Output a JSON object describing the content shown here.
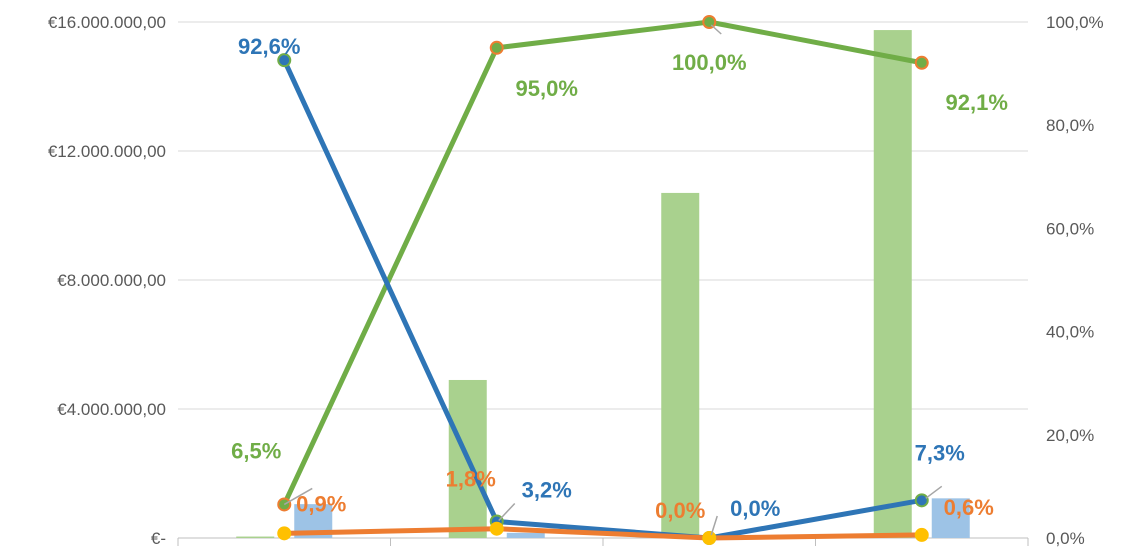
{
  "chart_data": {
    "type": "bar",
    "categories": [
      "",
      "",
      "",
      ""
    ],
    "y_left": {
      "min": 0,
      "max": 16000000,
      "ticks": [
        0,
        4000000,
        8000000,
        12000000,
        16000000
      ],
      "tick_labels": [
        "€-",
        "€4.000.000,00",
        "€8.000.000,00",
        "€12.000.000,00",
        "€16.000.000,00"
      ]
    },
    "y_right": {
      "min": 0,
      "max": 100,
      "ticks": [
        0,
        20,
        40,
        60,
        80,
        100
      ],
      "tick_labels": [
        "0,0%",
        "20,0%",
        "40,0%",
        "60,0%",
        "80,0%",
        "100,0%"
      ]
    },
    "grid": true,
    "legend": "none",
    "bar_series": [
      {
        "color": "#a9d18e",
        "values": [
          45000,
          4900000,
          10700000,
          15750000
        ]
      },
      {
        "color": "#9dc3e6",
        "values": [
          1050000,
          160000,
          0,
          1230000
        ]
      }
    ],
    "line_series": [
      {
        "color": "#70ad47",
        "marker_fill": "#70ad47",
        "marker_stroke": "#ed7d31",
        "values": [
          6.5,
          95.0,
          100.0,
          92.1
        ],
        "labels": [
          "6,5%",
          "95,0%",
          "100,0%",
          "92,1%"
        ]
      },
      {
        "color": "#2e75b6",
        "marker_fill": "#2e75b6",
        "marker_stroke": "#70ad47",
        "values": [
          92.6,
          3.2,
          0.0,
          7.3
        ],
        "labels": [
          "92,6%",
          "3,2%",
          "0,0%",
          "7,3%"
        ]
      },
      {
        "color": "#ed7d31",
        "marker_fill": "#ffc000",
        "marker_stroke": "#ffc000",
        "values": [
          0.9,
          1.8,
          0.0,
          0.6
        ],
        "labels": [
          "0,9%",
          "1,8%",
          "0,0%",
          "0,6%"
        ]
      }
    ]
  }
}
